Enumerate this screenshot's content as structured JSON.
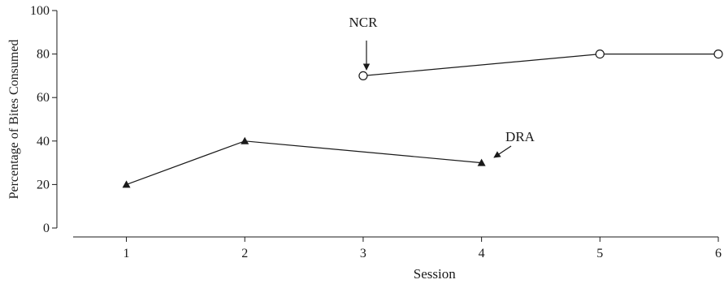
{
  "chart_data": {
    "type": "line",
    "title": "",
    "xlabel": "Session",
    "ylabel": "Percentage of Bites Consumed",
    "x_ticks": [
      1,
      2,
      3,
      4,
      5,
      6
    ],
    "y_ticks": [
      0,
      20,
      40,
      60,
      80,
      100
    ],
    "xlim": [
      0.55,
      6.0
    ],
    "ylim": [
      0,
      100
    ],
    "grid": false,
    "series": [
      {
        "name": "DRA",
        "marker": "filled-triangle",
        "x": [
          1,
          2,
          4
        ],
        "y": [
          20,
          40,
          30
        ]
      },
      {
        "name": "NCR",
        "marker": "open-circle",
        "x": [
          3,
          5,
          6
        ],
        "y": [
          70,
          80,
          80
        ]
      }
    ],
    "annotations": [
      {
        "text": "NCR",
        "series": "NCR"
      },
      {
        "text": "DRA",
        "series": "DRA"
      }
    ],
    "colors": {
      "line": "#1a1a1a",
      "background": "#ffffff"
    }
  }
}
